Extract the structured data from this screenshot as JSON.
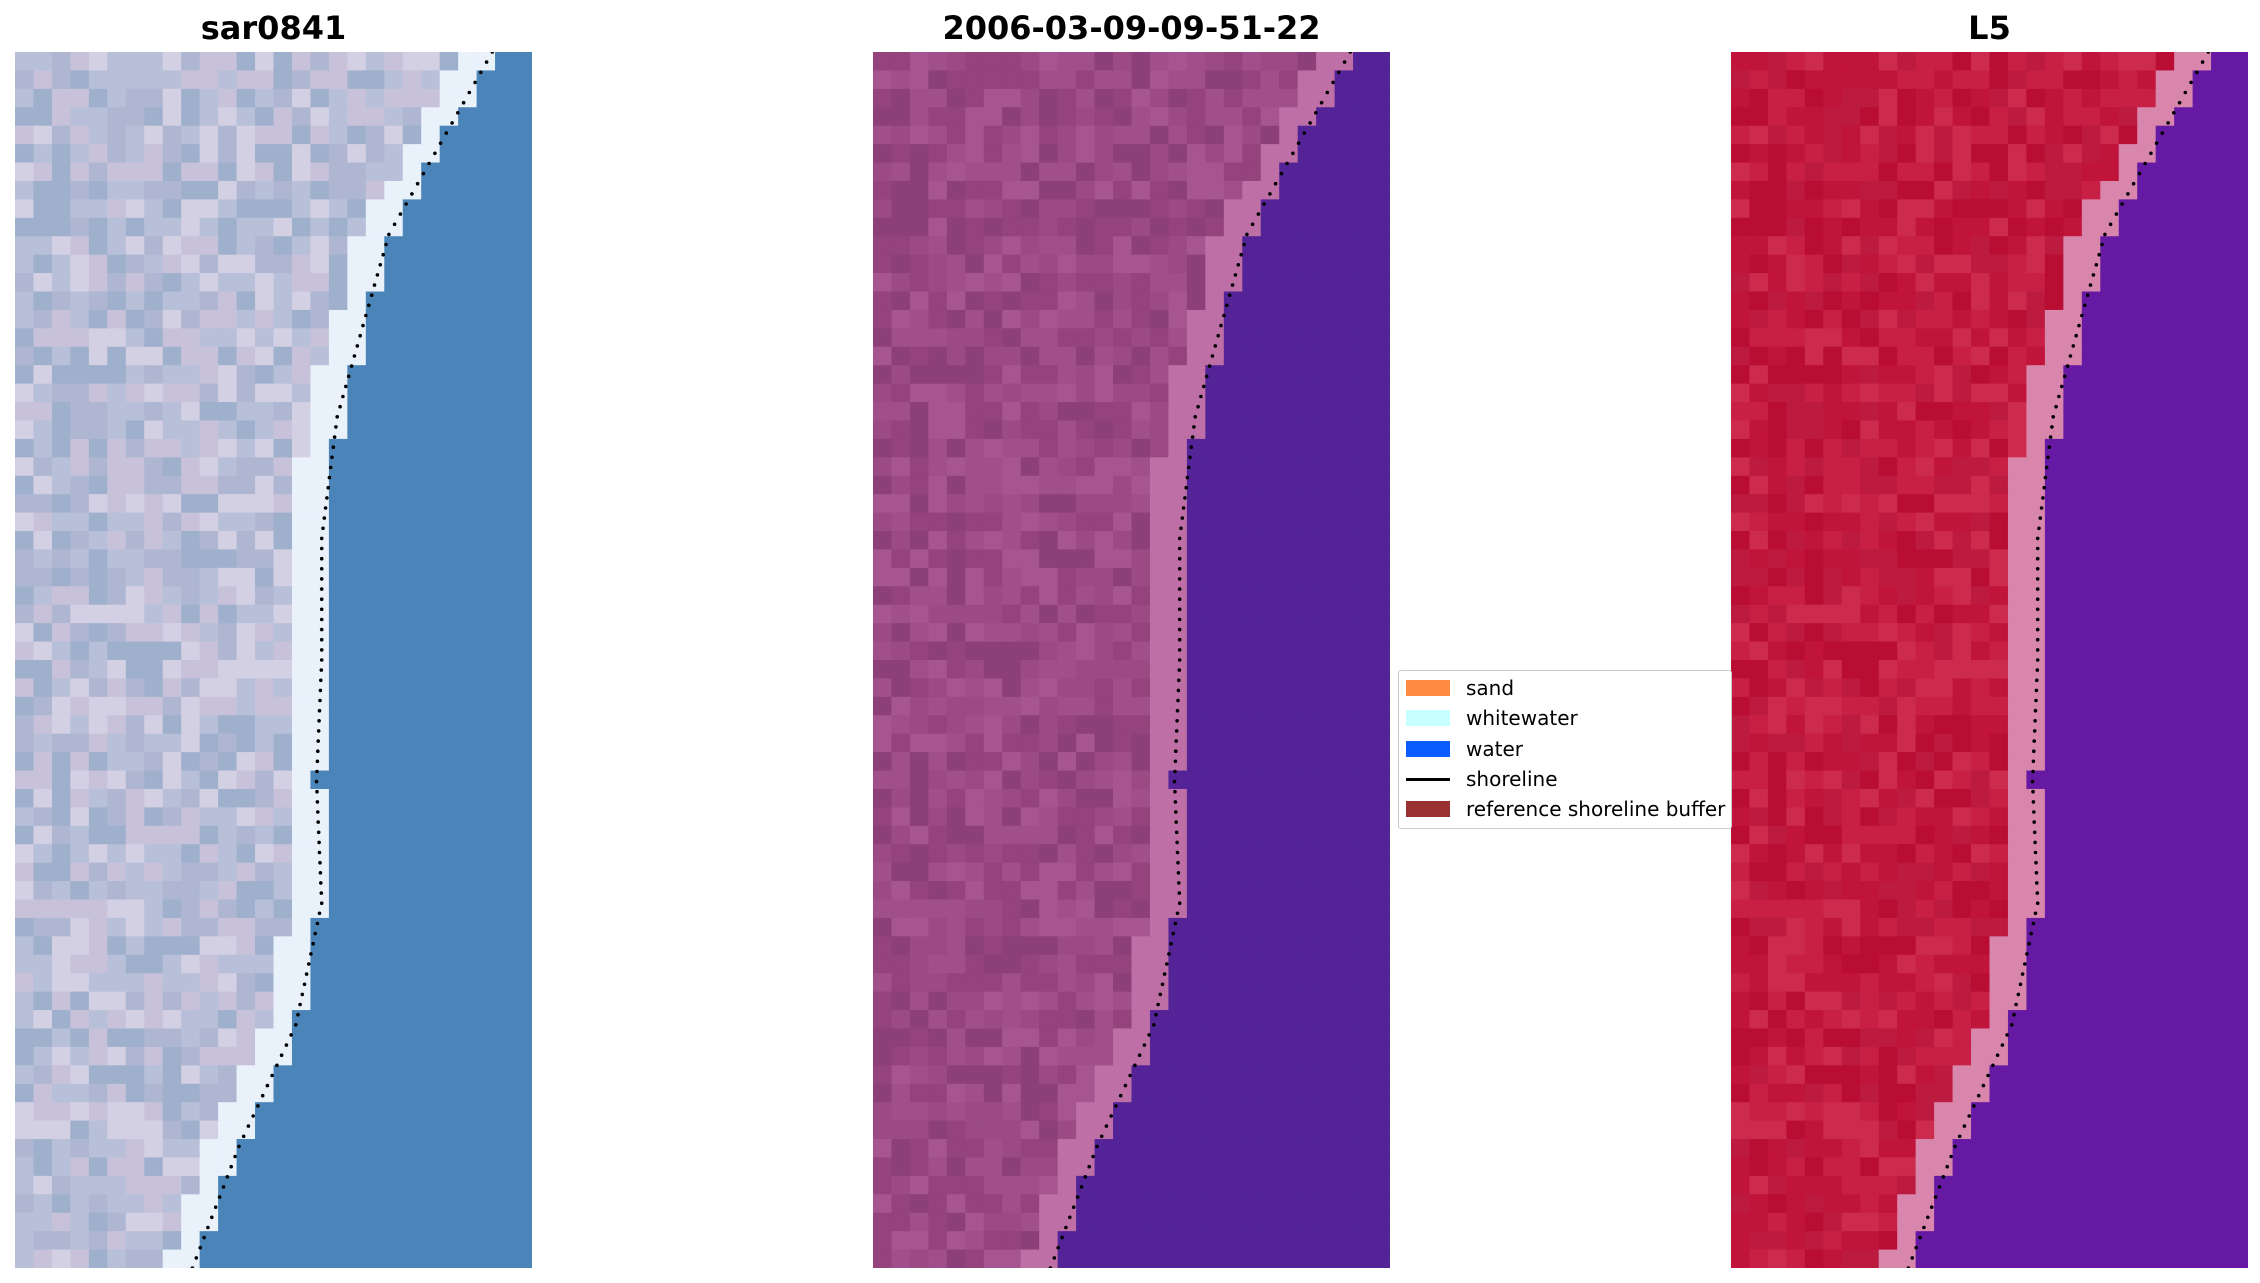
{
  "panels": [
    {
      "title": "sar0841",
      "palette": [
        "#b8bfd8",
        "#c7c2d9",
        "#9fb0cc",
        "#d4d0e3",
        "#aeb6d2"
      ],
      "edge": "#e9f1fb",
      "water": "#4a84b9"
    },
    {
      "title": "2006-03-09-09-51-22",
      "palette": [
        "#94437c",
        "#a04f8a",
        "#8c3f78",
        "#9b4a84",
        "#a65590"
      ],
      "edge": "#be6fa6",
      "water": "#532397"
    },
    {
      "title": "L5",
      "palette": [
        "#c1143a",
        "#c81f45",
        "#b90d34",
        "#cc2b4d",
        "#bd1a3f"
      ],
      "edge": "#d986ad",
      "water": "#661aa3"
    }
  ],
  "legend": {
    "items": [
      {
        "label": "sand",
        "type": "patch",
        "color": "#ff8c42"
      },
      {
        "label": "whitewater",
        "type": "patch",
        "color": "#c8ffff"
      },
      {
        "label": "water",
        "type": "patch",
        "color": "#0a5cff"
      },
      {
        "label": "shoreline",
        "type": "line",
        "color": "#000000"
      },
      {
        "label": "reference shoreline buffer",
        "type": "patch",
        "color": "#9a3234"
      }
    ]
  }
}
